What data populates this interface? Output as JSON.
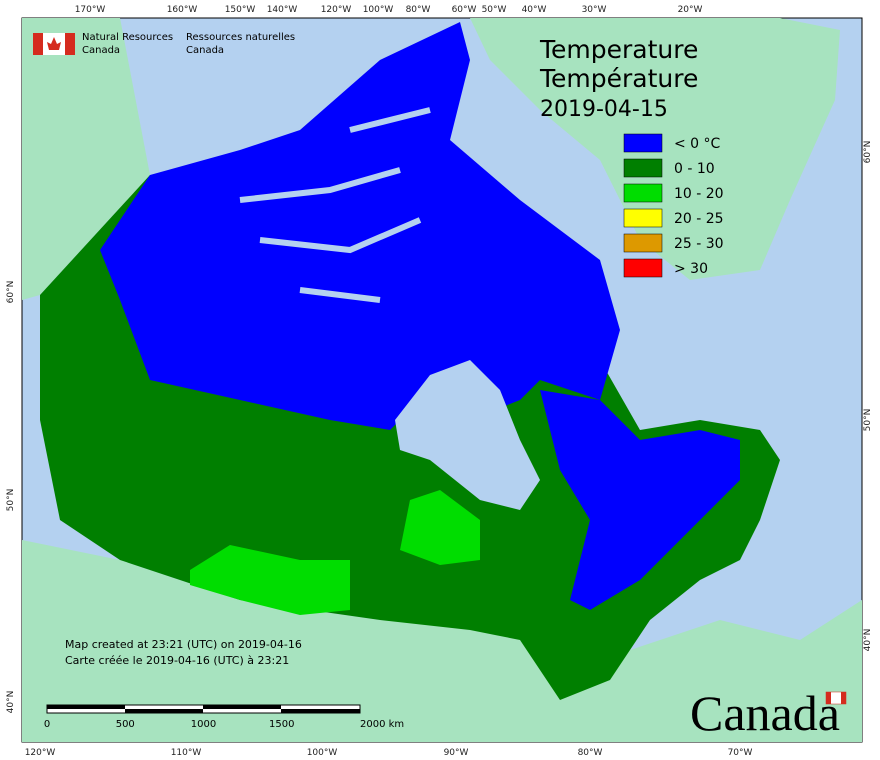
{
  "header": {
    "dept_en": [
      "Natural Resources",
      "Canada"
    ],
    "dept_fr": [
      "Ressources naturelles",
      "Canada"
    ]
  },
  "title": {
    "lines": [
      "Temperature",
      "Température",
      "2019-04-15"
    ]
  },
  "legend": [
    {
      "label": "< 0 °C",
      "color": "#0000ff"
    },
    {
      "label": "0 - 10",
      "color": "#007f00"
    },
    {
      "label": "10 - 20",
      "color": "#00dd00"
    },
    {
      "label": "20 - 25",
      "color": "#ffff00"
    },
    {
      "label": "25 - 30",
      "color": "#dd9900"
    },
    {
      "label": "> 30",
      "color": "#ff0000"
    }
  ],
  "graticule": {
    "top": [
      "170°W",
      "160°W",
      "150°W",
      "140°W",
      "120°W",
      "100°W",
      "80°W",
      "60°W",
      "50°W",
      "40°W",
      "30°W",
      "20°W"
    ],
    "bottom": [
      "120°W",
      "110°W",
      "100°W",
      "90°W",
      "80°W",
      "70°W"
    ],
    "left": [
      "60°N",
      "50°N",
      "40°N"
    ],
    "right": [
      "60°N",
      "50°N",
      "40°N"
    ]
  },
  "notes": [
    "Map created at 23:21 (UTC) on 2019-04-16",
    "Carte créée le 2019-04-16 (UTC) à 23:21"
  ],
  "scale": [
    "0",
    "500",
    "1000",
    "1500",
    "2000 km"
  ],
  "wordmark": "Canada"
}
